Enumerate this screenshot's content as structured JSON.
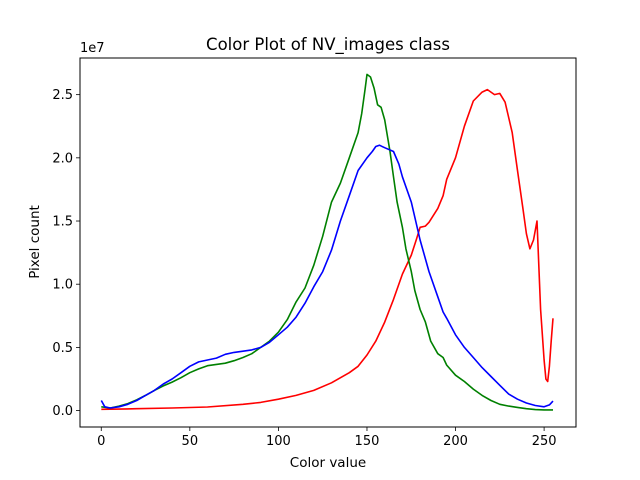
{
  "chart_data": {
    "type": "line",
    "title": "Color Plot of NV_images class",
    "xlabel": "Color value",
    "ylabel": "Pixel count",
    "y_offset_text": "1e7",
    "xlim": [
      -12,
      268
    ],
    "ylim": [
      -1.3,
      27.9
    ],
    "y_scale_note": "values in units of 1e7",
    "x_ticks": [
      0,
      50,
      100,
      150,
      200,
      250
    ],
    "x_tick_labels": [
      "0",
      "50",
      "100",
      "150",
      "200",
      "250"
    ],
    "y_ticks": [
      0,
      5,
      10,
      15,
      20,
      25
    ],
    "y_tick_labels": [
      "0.0",
      "0.5",
      "1.0",
      "1.5",
      "2.0",
      "2.5"
    ],
    "grid": false,
    "series": [
      {
        "color": "#ff0000",
        "points": [
          [
            0,
            0.1
          ],
          [
            10,
            0.12
          ],
          [
            20,
            0.15
          ],
          [
            40,
            0.2
          ],
          [
            60,
            0.28
          ],
          [
            80,
            0.5
          ],
          [
            90,
            0.65
          ],
          [
            100,
            0.9
          ],
          [
            110,
            1.2
          ],
          [
            120,
            1.6
          ],
          [
            130,
            2.2
          ],
          [
            140,
            3.0
          ],
          [
            145,
            3.5
          ],
          [
            150,
            4.4
          ],
          [
            155,
            5.5
          ],
          [
            160,
            7.0
          ],
          [
            165,
            8.8
          ],
          [
            170,
            10.8
          ],
          [
            175,
            12.3
          ],
          [
            178,
            13.6
          ],
          [
            180,
            14.5
          ],
          [
            183,
            14.6
          ],
          [
            185,
            14.9
          ],
          [
            190,
            16.0
          ],
          [
            193,
            17.0
          ],
          [
            195,
            18.3
          ],
          [
            200,
            20.0
          ],
          [
            205,
            22.5
          ],
          [
            210,
            24.5
          ],
          [
            215,
            25.2
          ],
          [
            218,
            25.4
          ],
          [
            222,
            25.0
          ],
          [
            225,
            25.1
          ],
          [
            228,
            24.4
          ],
          [
            232,
            22.0
          ],
          [
            235,
            19.0
          ],
          [
            238,
            16.0
          ],
          [
            240,
            14.0
          ],
          [
            242,
            12.8
          ],
          [
            244,
            13.5
          ],
          [
            246,
            15.0
          ],
          [
            248,
            8.0
          ],
          [
            250,
            4.0
          ],
          [
            251,
            2.5
          ],
          [
            252,
            2.3
          ],
          [
            253,
            3.5
          ],
          [
            254,
            5.5
          ],
          [
            255,
            7.3
          ]
        ]
      },
      {
        "color": "#008000",
        "points": [
          [
            0,
            0.3
          ],
          [
            5,
            0.2
          ],
          [
            10,
            0.35
          ],
          [
            15,
            0.55
          ],
          [
            20,
            0.85
          ],
          [
            25,
            1.2
          ],
          [
            30,
            1.6
          ],
          [
            35,
            1.95
          ],
          [
            40,
            2.25
          ],
          [
            45,
            2.6
          ],
          [
            50,
            3.0
          ],
          [
            55,
            3.3
          ],
          [
            60,
            3.55
          ],
          [
            65,
            3.65
          ],
          [
            70,
            3.75
          ],
          [
            75,
            3.95
          ],
          [
            80,
            4.2
          ],
          [
            85,
            4.5
          ],
          [
            90,
            5.0
          ],
          [
            95,
            5.5
          ],
          [
            100,
            6.2
          ],
          [
            105,
            7.2
          ],
          [
            110,
            8.6
          ],
          [
            115,
            9.7
          ],
          [
            120,
            11.5
          ],
          [
            125,
            13.8
          ],
          [
            130,
            16.5
          ],
          [
            135,
            18.0
          ],
          [
            140,
            20.0
          ],
          [
            145,
            22.0
          ],
          [
            147,
            23.5
          ],
          [
            149,
            25.5
          ],
          [
            150,
            26.6
          ],
          [
            152,
            26.4
          ],
          [
            154,
            25.5
          ],
          [
            156,
            24.2
          ],
          [
            158,
            24.0
          ],
          [
            160,
            23.0
          ],
          [
            163,
            20.5
          ],
          [
            165,
            18.5
          ],
          [
            167,
            16.5
          ],
          [
            170,
            14.5
          ],
          [
            172,
            12.8
          ],
          [
            175,
            11.0
          ],
          [
            177,
            9.5
          ],
          [
            180,
            8.0
          ],
          [
            183,
            7.0
          ],
          [
            186,
            5.5
          ],
          [
            190,
            4.5
          ],
          [
            193,
            4.2
          ],
          [
            195,
            3.6
          ],
          [
            200,
            2.8
          ],
          [
            205,
            2.3
          ],
          [
            210,
            1.7
          ],
          [
            215,
            1.2
          ],
          [
            220,
            0.8
          ],
          [
            225,
            0.5
          ],
          [
            230,
            0.35
          ],
          [
            235,
            0.25
          ],
          [
            240,
            0.15
          ],
          [
            245,
            0.08
          ],
          [
            250,
            0.05
          ],
          [
            255,
            0.05
          ]
        ]
      },
      {
        "color": "#0000ff",
        "points": [
          [
            0,
            0.8
          ],
          [
            2,
            0.3
          ],
          [
            5,
            0.2
          ],
          [
            10,
            0.3
          ],
          [
            15,
            0.5
          ],
          [
            20,
            0.8
          ],
          [
            25,
            1.2
          ],
          [
            30,
            1.6
          ],
          [
            35,
            2.1
          ],
          [
            40,
            2.5
          ],
          [
            45,
            3.0
          ],
          [
            50,
            3.5
          ],
          [
            55,
            3.85
          ],
          [
            60,
            4.0
          ],
          [
            65,
            4.15
          ],
          [
            70,
            4.45
          ],
          [
            75,
            4.6
          ],
          [
            80,
            4.7
          ],
          [
            85,
            4.8
          ],
          [
            90,
            5.0
          ],
          [
            95,
            5.4
          ],
          [
            100,
            6.0
          ],
          [
            105,
            6.6
          ],
          [
            110,
            7.4
          ],
          [
            115,
            8.5
          ],
          [
            120,
            9.8
          ],
          [
            125,
            11.0
          ],
          [
            130,
            12.7
          ],
          [
            135,
            15.0
          ],
          [
            140,
            17.0
          ],
          [
            145,
            19.0
          ],
          [
            150,
            20.0
          ],
          [
            153,
            20.5
          ],
          [
            155,
            20.9
          ],
          [
            157,
            21.0
          ],
          [
            160,
            20.8
          ],
          [
            165,
            20.5
          ],
          [
            168,
            19.5
          ],
          [
            170,
            18.5
          ],
          [
            175,
            16.5
          ],
          [
            180,
            13.5
          ],
          [
            185,
            11.0
          ],
          [
            190,
            9.0
          ],
          [
            193,
            7.8
          ],
          [
            195,
            7.3
          ],
          [
            200,
            6.0
          ],
          [
            205,
            5.0
          ],
          [
            210,
            4.2
          ],
          [
            215,
            3.4
          ],
          [
            220,
            2.7
          ],
          [
            225,
            2.0
          ],
          [
            230,
            1.3
          ],
          [
            235,
            0.9
          ],
          [
            240,
            0.6
          ],
          [
            245,
            0.4
          ],
          [
            250,
            0.3
          ],
          [
            253,
            0.45
          ],
          [
            255,
            0.75
          ]
        ]
      }
    ]
  }
}
